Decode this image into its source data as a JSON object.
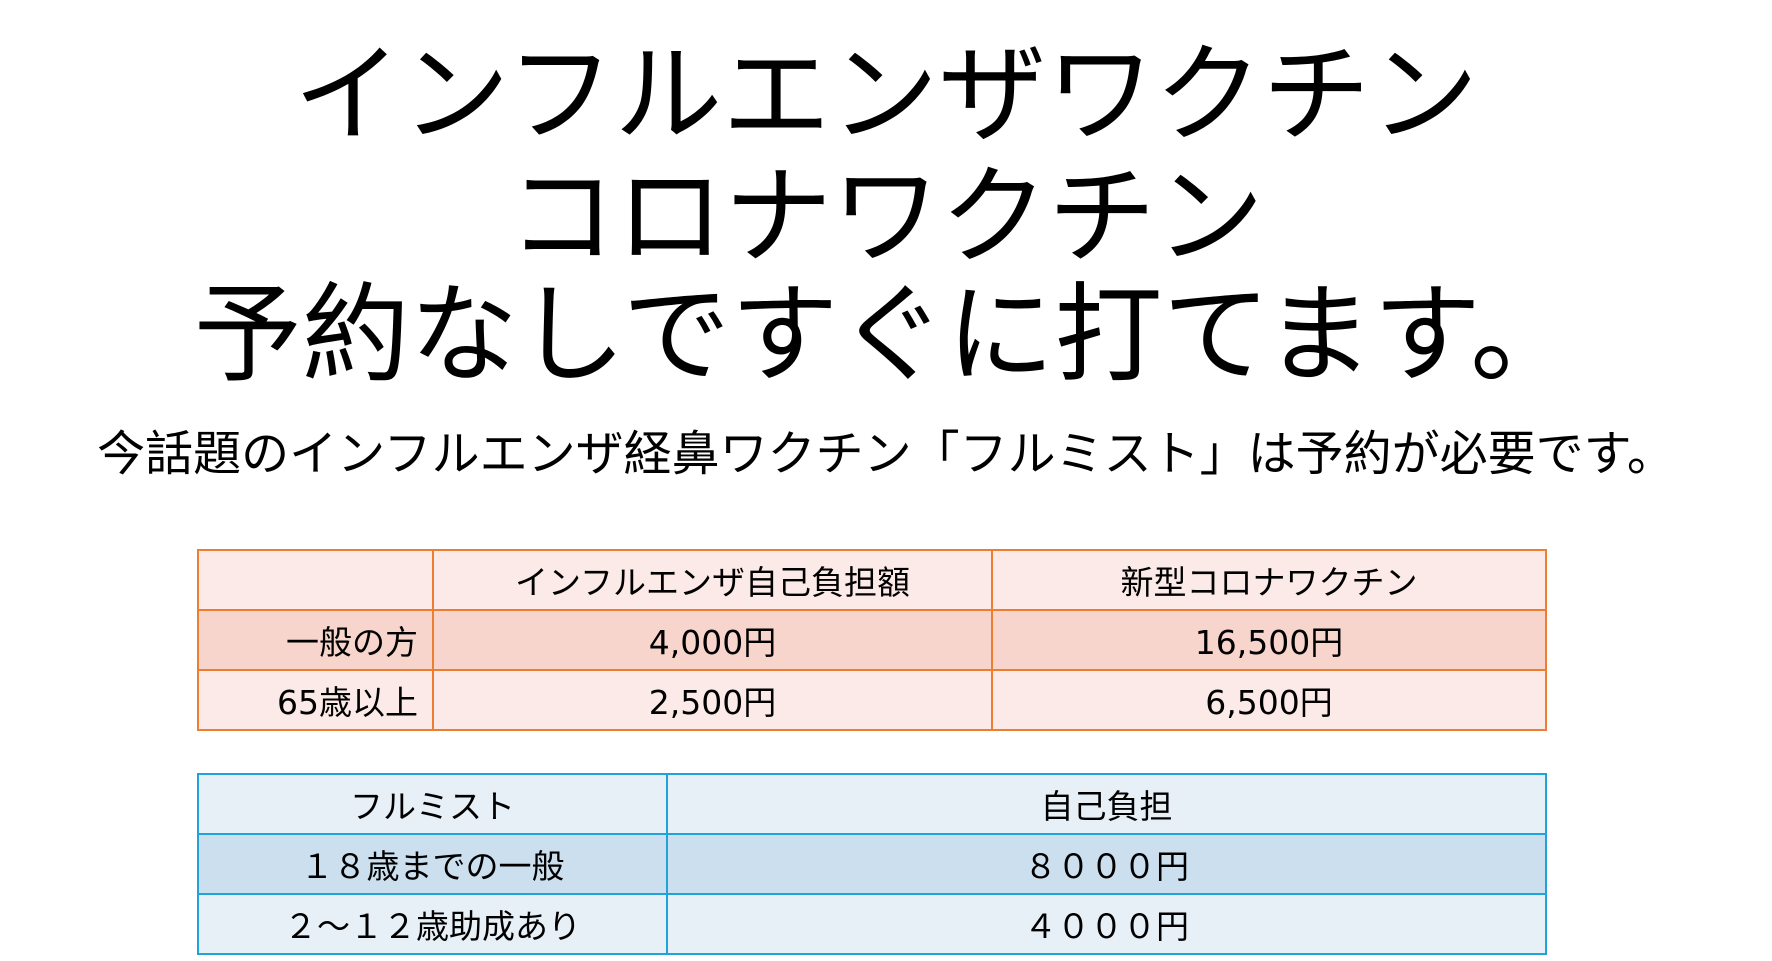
{
  "title_lines": [
    "インフルエンザワクチン",
    "コロナワクチン",
    "予約なしですぐに打てます。"
  ],
  "subtitle": "今話題のインフルエンザ経鼻ワクチン「フルミスト」は予約が必要です。",
  "price_table": {
    "headers": [
      "",
      "インフルエンザ自己負担額",
      "新型コロナワクチン"
    ],
    "rows": [
      [
        "一般の方",
        "4,000円",
        "16,500円"
      ],
      [
        "65歳以上",
        "2,500円",
        "6,500円"
      ]
    ],
    "border_color": "#ED7D31"
  },
  "flumist_table": {
    "headers": [
      "フルミスト",
      "自己負担"
    ],
    "rows": [
      [
        "１８歳までの一般",
        "８０００円"
      ],
      [
        "２～１２歳助成あり",
        "４０００円"
      ]
    ],
    "border_color": "#1FA3D8"
  }
}
